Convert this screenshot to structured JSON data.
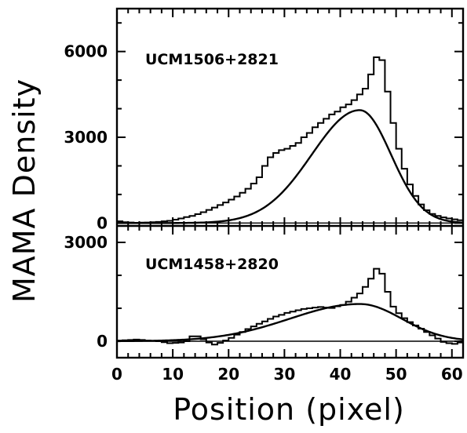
{
  "chart_data": [
    {
      "type": "line",
      "panel_label": "UCM1506+2821",
      "xlabel": "Position (pixel)",
      "ylabel": "MAMA Density",
      "xlim": [
        0,
        62
      ],
      "ylim": [
        -100,
        7500
      ],
      "x_ticks": [
        0,
        10,
        20,
        30,
        40,
        50,
        60
      ],
      "y_ticks": [
        0,
        3000,
        6000
      ],
      "series": [
        {
          "kind": "histogram",
          "x": [
            0,
            1,
            2,
            3,
            4,
            5,
            6,
            7,
            8,
            9,
            10,
            11,
            12,
            13,
            14,
            15,
            16,
            17,
            18,
            19,
            20,
            21,
            22,
            23,
            24,
            25,
            26,
            27,
            28,
            29,
            30,
            31,
            32,
            33,
            34,
            35,
            36,
            37,
            38,
            39,
            40,
            41,
            42,
            43,
            44,
            45,
            46,
            47,
            48,
            49,
            50,
            51,
            52,
            53,
            54,
            55,
            56,
            57,
            58,
            59,
            60,
            61
          ],
          "values": [
            60,
            30,
            20,
            10,
            15,
            20,
            30,
            40,
            60,
            80,
            120,
            160,
            210,
            250,
            310,
            380,
            460,
            540,
            630,
            720,
            820,
            930,
            1060,
            1200,
            1380,
            1600,
            2000,
            2300,
            2450,
            2550,
            2600,
            2700,
            2800,
            3000,
            3150,
            3350,
            3500,
            3650,
            3800,
            3900,
            4050,
            4150,
            4300,
            4500,
            4700,
            5200,
            5800,
            5700,
            4600,
            3500,
            2600,
            1900,
            1350,
            950,
            650,
            450,
            320,
            250,
            200,
            160,
            130,
            100
          ]
        },
        {
          "kind": "fit",
          "center": 43.5,
          "peak": 3950,
          "width_left": 8.6,
          "width_right": 5.6
        }
      ]
    },
    {
      "type": "line",
      "panel_label": "UCM1458+2820",
      "xlabel": "Position (pixel)",
      "ylabel": "MAMA Density",
      "xlim": [
        0,
        62
      ],
      "ylim": [
        -500,
        3500
      ],
      "x_ticks": [
        0,
        10,
        20,
        30,
        40,
        50,
        60
      ],
      "y_ticks": [
        0,
        3000
      ],
      "series": [
        {
          "kind": "histogram",
          "x": [
            0,
            1,
            2,
            3,
            4,
            5,
            6,
            7,
            8,
            9,
            10,
            11,
            12,
            13,
            14,
            15,
            16,
            17,
            18,
            19,
            20,
            21,
            22,
            23,
            24,
            25,
            26,
            27,
            28,
            29,
            30,
            31,
            32,
            33,
            34,
            35,
            36,
            37,
            38,
            39,
            40,
            41,
            42,
            43,
            44,
            45,
            46,
            47,
            48,
            49,
            50,
            51,
            52,
            53,
            54,
            55,
            56,
            57,
            58,
            59,
            60,
            61
          ],
          "values": [
            20,
            30,
            40,
            50,
            40,
            20,
            10,
            0,
            -30,
            -60,
            -50,
            -40,
            0,
            150,
            150,
            60,
            -40,
            -100,
            -50,
            20,
            100,
            200,
            280,
            370,
            450,
            530,
            600,
            680,
            750,
            800,
            860,
            900,
            940,
            980,
            1000,
            1020,
            1040,
            1020,
            1010,
            1060,
            1100,
            1200,
            1320,
            1450,
            1650,
            1900,
            2200,
            2050,
            1500,
            1050,
            850,
            700,
            580,
            480,
            380,
            280,
            180,
            80,
            -20,
            -60,
            -80,
            -40
          ]
        },
        {
          "kind": "fit",
          "center": 43.5,
          "peak": 1130,
          "width_left": 12.5,
          "width_right": 7.5
        }
      ]
    }
  ]
}
